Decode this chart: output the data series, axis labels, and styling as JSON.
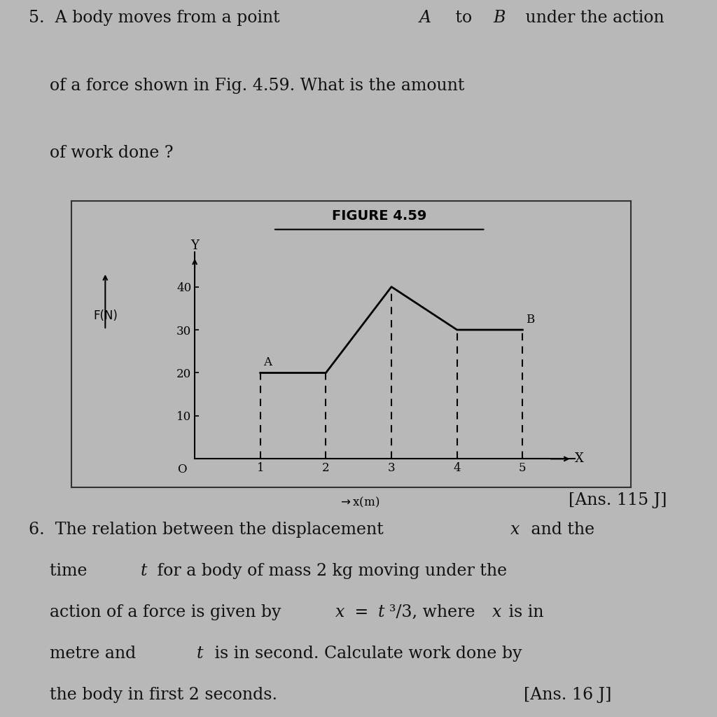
{
  "figure_title": "FIGURE 4.59",
  "xlabel": "x(m)",
  "x_axis_label": "X",
  "y_axis_label": "Y",
  "x_data": [
    1,
    2,
    3,
    4,
    5
  ],
  "y_data": [
    20,
    20,
    40,
    30,
    30
  ],
  "dashed_x": [
    1,
    2,
    3,
    4,
    5
  ],
  "yticks": [
    10,
    20,
    30,
    40
  ],
  "xticks": [
    1,
    2,
    3,
    4,
    5
  ],
  "xlim": [
    0,
    5.8
  ],
  "ylim": [
    0,
    48
  ],
  "point_A_x": 1,
  "point_A_y": 20,
  "point_B_x": 5,
  "point_B_y": 30,
  "line_color": "#000000",
  "dashed_color": "#000000",
  "bg_color": "#b8b8b8",
  "box_border_color": "#555555",
  "text_color": "#111111",
  "q5_line1": "5.  A body moves from a point ",
  "q5_line1_italic": "A",
  "q5_line1b": " to ",
  "q5_line1_italic2": "B",
  "q5_line1c": " under the action",
  "q5_line2": "    of a force shown in Fig. 4.59. What is the amount",
  "q5_line3": "    of work done ?",
  "ans5": "[Ans. 115 J]",
  "q6_line1": "6.  The relation between the displacement ",
  "q6_line1_italic": "x",
  "q6_line1b": " and the",
  "q6_line2": "    time ",
  "q6_line2_italic": "t",
  "q6_line2b": " for a body of mass 2 kg moving under the",
  "q6_line3": "    action of a force is given by ",
  "q6_line3_italic": "x",
  "q6_line3b": " = ",
  "q6_line3_italic2": "t",
  "q6_line3c": "³/3, where ",
  "q6_line3_italic3": "x",
  "q6_line3d": " is in",
  "q6_line4": "    metre and ",
  "q6_line4_italic": "t",
  "q6_line4b": " is in second. Calculate work done by",
  "q6_line5": "    the body in first 2 seconds.",
  "ans6": "[Ans. 16 J]"
}
